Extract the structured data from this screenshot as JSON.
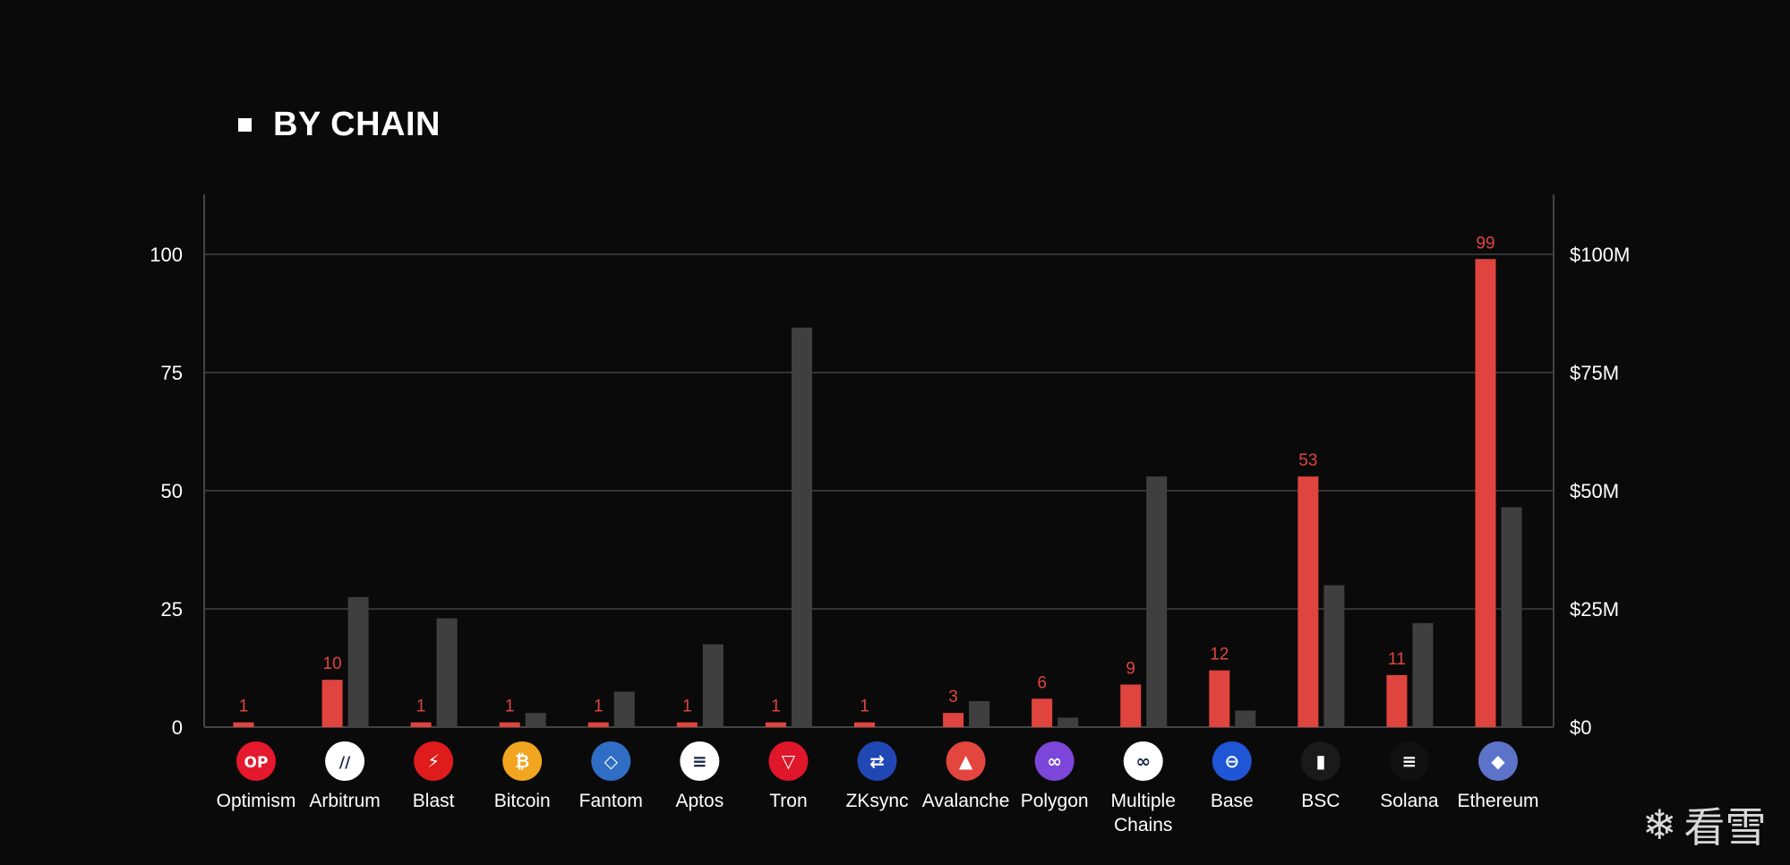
{
  "title": "BY CHAIN",
  "colors": {
    "count_bar": "#e0443e",
    "value_bar": "#3f3f3f",
    "background": "#0b0a0a",
    "grid": "#333333"
  },
  "watermark": {
    "icon": "snowflake-icon",
    "text": "看雪"
  },
  "chart_data": {
    "type": "bar",
    "categories": [
      "Optimism",
      "Arbitrum",
      "Blast",
      "Bitcoin",
      "Fantom",
      "Aptos",
      "Tron",
      "ZKsync",
      "Avalanche",
      "Polygon",
      "Multiple Chains",
      "Base",
      "BSC",
      "Solana",
      "Ethereum"
    ],
    "icons": [
      {
        "name": "optimism-icon",
        "color": "#e5182d",
        "glyph": "OP"
      },
      {
        "name": "arbitrum-icon",
        "color": "#ffffff",
        "glyph": "//"
      },
      {
        "name": "blast-icon",
        "color": "#e01b1b",
        "glyph": "⚡"
      },
      {
        "name": "bitcoin-icon",
        "color": "#f2a51f",
        "glyph": "₿"
      },
      {
        "name": "fantom-icon",
        "color": "#2f6ec4",
        "glyph": "◇"
      },
      {
        "name": "aptos-icon",
        "color": "#ffffff",
        "glyph": "≡"
      },
      {
        "name": "tron-icon",
        "color": "#e0162b",
        "glyph": "▽"
      },
      {
        "name": "zksync-icon",
        "color": "#2147b5",
        "glyph": "⇄"
      },
      {
        "name": "avalanche-icon",
        "color": "#e2463f",
        "glyph": "▲"
      },
      {
        "name": "polygon-icon",
        "color": "#7b46d9",
        "glyph": "∞"
      },
      {
        "name": "multiple-chains-icon",
        "color": "#ffffff",
        "glyph": "∞"
      },
      {
        "name": "base-icon",
        "color": "#1f56d6",
        "glyph": "⊖"
      },
      {
        "name": "bsc-icon",
        "color": "#1a1a1a",
        "glyph": "▮"
      },
      {
        "name": "solana-icon",
        "color": "#111111",
        "glyph": "≡"
      },
      {
        "name": "ethereum-icon",
        "color": "#5c73c9",
        "glyph": "◆"
      }
    ],
    "series": [
      {
        "axis": "left",
        "values": [
          1,
          10,
          1,
          1,
          1,
          1,
          1,
          1,
          3,
          6,
          9,
          12,
          53,
          11,
          99
        ],
        "labels": [
          "1",
          "10",
          "1",
          "1",
          "1",
          "1",
          "1",
          "1",
          "3",
          "6",
          "9",
          "12",
          "53",
          "11",
          "99"
        ]
      },
      {
        "axis": "right",
        "unit": "$M",
        "values": [
          0,
          27.5,
          23,
          3,
          7.5,
          17.5,
          84.5,
          0,
          5.5,
          2,
          53,
          3.5,
          30,
          22,
          46.5
        ]
      }
    ],
    "left_axis": {
      "ylim": [
        0,
        100
      ],
      "ticks": [
        "0",
        "25",
        "50",
        "75",
        "100"
      ]
    },
    "right_axis": {
      "ylim": [
        0,
        100
      ],
      "ticks": [
        "$0",
        "$25M",
        "$50M",
        "$75M",
        "$100M"
      ]
    },
    "grid": true
  }
}
